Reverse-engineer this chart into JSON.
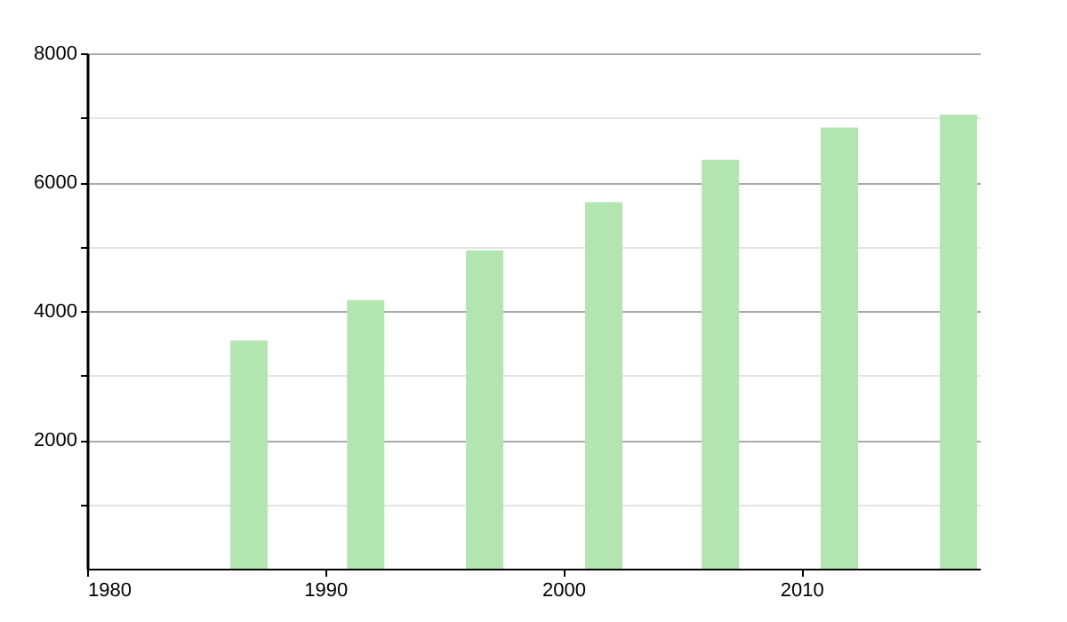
{
  "chart_data": {
    "type": "bar",
    "x": [
      1986.8,
      1991.7,
      1996.7,
      2001.7,
      2006.6,
      2011.6,
      2016.6
    ],
    "values": [
      3540,
      4170,
      4940,
      5690,
      6350,
      6850,
      7050
    ],
    "color": "#b3e5b1",
    "xlim": [
      1980,
      2017.5
    ],
    "xticks": [
      1980,
      1990,
      2000,
      2010
    ],
    "ylim": [
      0,
      8000
    ],
    "yticks": [
      {
        "value": 1000,
        "label": null
      },
      2000,
      {
        "value": 3000,
        "label": null
      },
      4000,
      {
        "value": 5000,
        "label": null
      },
      6000,
      {
        "value": 7000,
        "label": null
      },
      8000
    ],
    "grid": "y"
  }
}
